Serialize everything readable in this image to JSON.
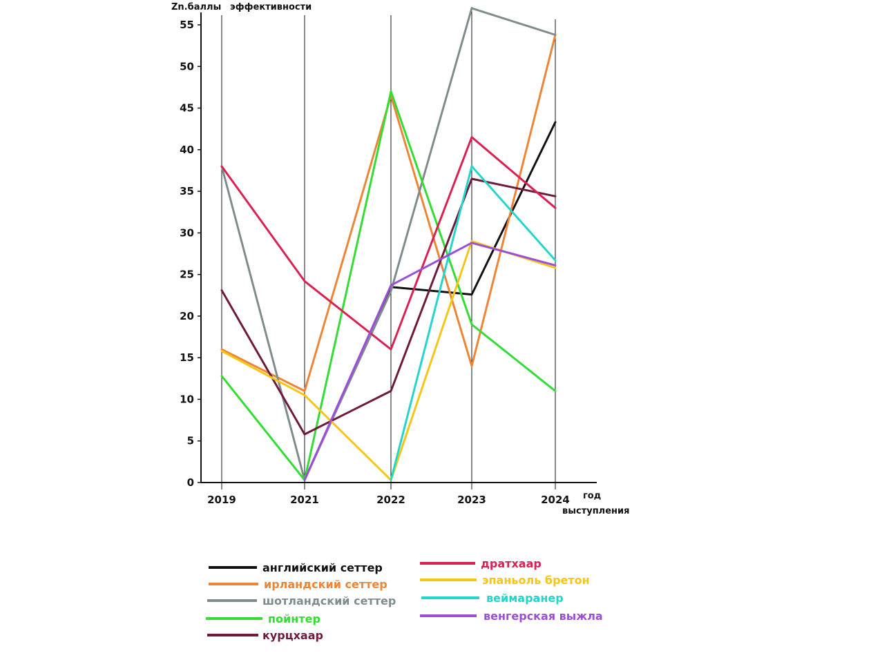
{
  "chart_data": {
    "type": "line",
    "title": "",
    "ylabel_part1": "Zn.баллы",
    "ylabel_part2": "эффективности",
    "xlabel_part1": "год",
    "xlabel_part2": "выступления",
    "x": [
      "2019",
      "2021",
      "2022",
      "2023",
      "2024"
    ],
    "ylim": [
      0,
      57
    ],
    "yticks": [
      0,
      5,
      10,
      15,
      20,
      25,
      30,
      35,
      40,
      45,
      50,
      55
    ],
    "grid_vertical": true,
    "legend_position": "bottom",
    "series": [
      {
        "name": "английский сеттер",
        "color": "#111111",
        "values": [
          null,
          0.3,
          23.5,
          22.6,
          43.3
        ]
      },
      {
        "name": "ирландский сеттер",
        "color": "#ee8435",
        "values": [
          16.0,
          11.0,
          46.5,
          14.0,
          53.8
        ]
      },
      {
        "name": "шотландский сеттер",
        "color": "#7f8c8d",
        "values": [
          38.0,
          0.3,
          23.0,
          57.0,
          53.8
        ]
      },
      {
        "name": "пойнтер",
        "color": "#33dd33",
        "values": [
          12.8,
          0.3,
          47.0,
          19.0,
          11.0
        ]
      },
      {
        "name": "курцхаар",
        "color": "#6e1a3a",
        "values": [
          23.1,
          5.8,
          11.0,
          36.5,
          34.4
        ]
      },
      {
        "name": "дратхаар",
        "color": "#d92152",
        "values": [
          38.0,
          24.2,
          16.0,
          41.5,
          33.0
        ]
      },
      {
        "name": "эпаньоль бретон",
        "color": "#f5c517",
        "values": [
          15.8,
          10.5,
          0.3,
          29.0,
          25.8
        ]
      },
      {
        "name": "веймаранер",
        "color": "#22d6cc",
        "values": [
          null,
          null,
          0.3,
          38.0,
          26.7
        ]
      },
      {
        "name": "венгерская выжла",
        "color": "#9b4fd6",
        "values": [
          null,
          0.3,
          23.7,
          28.8,
          26.1
        ]
      }
    ]
  }
}
